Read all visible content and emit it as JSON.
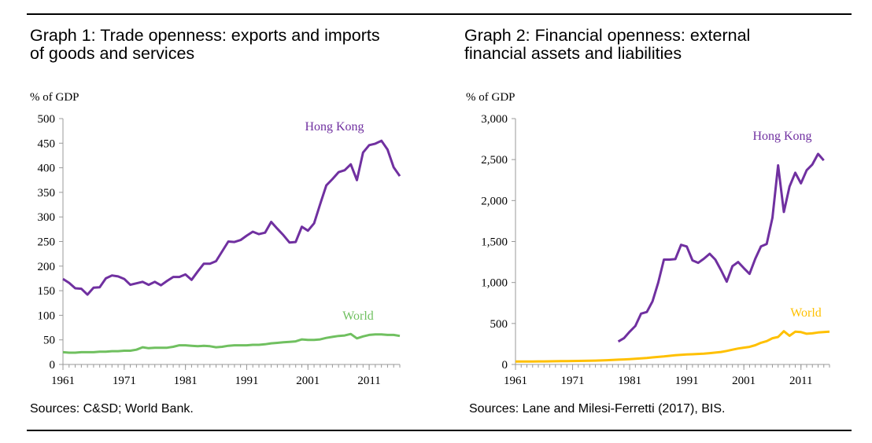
{
  "chart_data": [
    {
      "type": "line",
      "title": "Graph 1: Trade openness: exports and imports\nof goods and services",
      "ylabel": "% of GDP",
      "xlim": [
        1961,
        2016
      ],
      "ylim": [
        0,
        500
      ],
      "yticks": [
        0,
        50,
        100,
        150,
        200,
        250,
        300,
        350,
        400,
        450,
        500
      ],
      "ytick_labels": [
        "0",
        "50",
        "100",
        "150",
        "200",
        "250",
        "300",
        "350",
        "400",
        "450",
        "500"
      ],
      "xticks": [
        1961,
        1971,
        1981,
        1991,
        2001,
        2011
      ],
      "xtick_labels": [
        "1961",
        "1971",
        "1981",
        "1991",
        "2001",
        "2011"
      ],
      "grid": false,
      "source": "Sources: C&SD; World Bank.",
      "series": [
        {
          "name": "Hong Kong",
          "color": "#7030A0",
          "x": [
            1961,
            1962,
            1963,
            1964,
            1965,
            1966,
            1967,
            1968,
            1969,
            1970,
            1971,
            1972,
            1973,
            1974,
            1975,
            1976,
            1977,
            1978,
            1979,
            1980,
            1981,
            1982,
            1983,
            1984,
            1985,
            1986,
            1987,
            1988,
            1989,
            1990,
            1991,
            1992,
            1993,
            1994,
            1995,
            1996,
            1997,
            1998,
            1999,
            2000,
            2001,
            2002,
            2003,
            2004,
            2005,
            2006,
            2007,
            2008,
            2009,
            2010,
            2011,
            2012,
            2013,
            2014,
            2015,
            2016
          ],
          "values": [
            174,
            166,
            155,
            154,
            142,
            156,
            157,
            175,
            181,
            179,
            174,
            162,
            165,
            168,
            162,
            168,
            161,
            170,
            178,
            178,
            183,
            172,
            189,
            205,
            205,
            210,
            230,
            250,
            249,
            253,
            262,
            270,
            265,
            268,
            290,
            276,
            263,
            248,
            249,
            280,
            272,
            287,
            326,
            364,
            377,
            391,
            395,
            407,
            375,
            431,
            446,
            449,
            455,
            437,
            401,
            383
          ]
        },
        {
          "name": "World",
          "color": "#70C060",
          "x": [
            1961,
            1962,
            1963,
            1964,
            1965,
            1966,
            1967,
            1968,
            1969,
            1970,
            1971,
            1972,
            1973,
            1974,
            1975,
            1976,
            1977,
            1978,
            1979,
            1980,
            1981,
            1982,
            1983,
            1984,
            1985,
            1986,
            1987,
            1988,
            1989,
            1990,
            1991,
            1992,
            1993,
            1994,
            1995,
            1996,
            1997,
            1998,
            1999,
            2000,
            2001,
            2002,
            2003,
            2004,
            2005,
            2006,
            2007,
            2008,
            2009,
            2010,
            2011,
            2012,
            2013,
            2014,
            2015,
            2016
          ],
          "values": [
            25,
            24,
            24,
            25,
            25,
            25,
            26,
            26,
            27,
            27,
            28,
            28,
            30,
            35,
            33,
            34,
            34,
            34,
            36,
            39,
            39,
            38,
            37,
            38,
            37,
            35,
            36,
            38,
            39,
            39,
            39,
            40,
            40,
            41,
            43,
            44,
            45,
            46,
            47,
            51,
            50,
            50,
            51,
            54,
            56,
            58,
            59,
            62,
            53,
            57,
            60,
            61,
            61,
            60,
            60,
            58
          ]
        }
      ]
    },
    {
      "type": "line",
      "title": "Graph 2: Financial openness: external\nfinancial assets and liabilities",
      "ylabel": "% of GDP",
      "xlim": [
        1961,
        2016
      ],
      "ylim": [
        0,
        3000
      ],
      "yticks": [
        0,
        500,
        1000,
        1500,
        2000,
        2500,
        3000
      ],
      "ytick_labels": [
        "0",
        "500",
        "1,000",
        "1,500",
        "2,000",
        "2,500",
        "3,000"
      ],
      "xticks": [
        1961,
        1971,
        1981,
        1991,
        2001,
        2011
      ],
      "xtick_labels": [
        "1961",
        "1971",
        "1981",
        "1991",
        "2001",
        "2011"
      ],
      "grid": false,
      "source": "Sources: Lane and Milesi-Ferretti (2017), BIS.",
      "series": [
        {
          "name": "Hong Kong",
          "color": "#7030A0",
          "x": [
            1979,
            1980,
            1981,
            1982,
            1983,
            1984,
            1985,
            1986,
            1987,
            1988,
            1989,
            1990,
            1991,
            1992,
            1993,
            1994,
            1995,
            1996,
            1997,
            1998,
            1999,
            2000,
            2001,
            2002,
            2003,
            2004,
            2005,
            2006,
            2007,
            2008,
            2009,
            2010,
            2011,
            2012,
            2013,
            2014,
            2015
          ],
          "values": [
            280,
            320,
            400,
            470,
            620,
            640,
            770,
            1000,
            1280,
            1280,
            1285,
            1460,
            1440,
            1270,
            1240,
            1290,
            1350,
            1280,
            1150,
            1010,
            1200,
            1250,
            1175,
            1105,
            1290,
            1440,
            1470,
            1790,
            2430,
            1860,
            2170,
            2340,
            2210,
            2370,
            2440,
            2570,
            2490
          ]
        },
        {
          "name": "World",
          "color": "#FFC000",
          "x": [
            1961,
            1962,
            1963,
            1964,
            1965,
            1966,
            1967,
            1968,
            1969,
            1970,
            1971,
            1972,
            1973,
            1974,
            1975,
            1976,
            1977,
            1978,
            1979,
            1980,
            1981,
            1982,
            1983,
            1984,
            1985,
            1986,
            1987,
            1988,
            1989,
            1990,
            1991,
            1992,
            1993,
            1994,
            1995,
            1996,
            1997,
            1998,
            1999,
            2000,
            2001,
            2002,
            2003,
            2004,
            2005,
            2006,
            2007,
            2008,
            2009,
            2010,
            2011,
            2012,
            2013,
            2014,
            2015,
            2016
          ],
          "values": [
            35,
            35,
            36,
            36,
            37,
            37,
            38,
            39,
            40,
            41,
            42,
            43,
            44,
            45,
            47,
            49,
            52,
            55,
            58,
            61,
            65,
            70,
            75,
            80,
            86,
            92,
            98,
            105,
            112,
            118,
            122,
            125,
            128,
            132,
            138,
            145,
            152,
            165,
            180,
            195,
            205,
            215,
            235,
            265,
            285,
            320,
            335,
            405,
            350,
            400,
            395,
            375,
            380,
            390,
            395,
            400
          ]
        }
      ]
    }
  ]
}
